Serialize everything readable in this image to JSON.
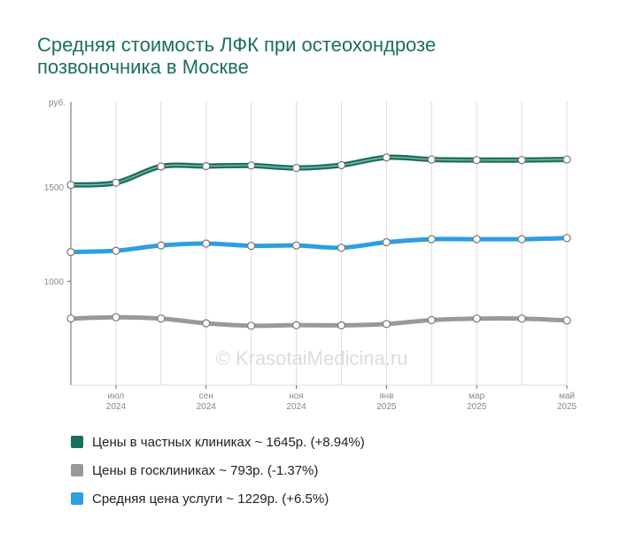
{
  "title_lines": [
    "Средняя стоимость ЛФК при остеохондрозе",
    "позвоночника в Москве"
  ],
  "chart_data": {
    "type": "line",
    "title": "Средняя стоимость ЛФК при остеохондрозе позвоночника в Москве",
    "ylabel": "руб.",
    "ylim": [
      450,
      1950
    ],
    "yticks": [
      {
        "value": 1500,
        "label": "1500"
      },
      {
        "value": 1000,
        "label": "1000"
      }
    ],
    "x": [
      "2024-06",
      "2024-07",
      "2024-08",
      "2024-09",
      "2024-10",
      "2024-11",
      "2024-12",
      "2025-01",
      "2025-02",
      "2025-03",
      "2025-04",
      "2025-05"
    ],
    "xticks": [
      {
        "index": 1,
        "month": "июл",
        "year": "2024"
      },
      {
        "index": 3,
        "month": "сен",
        "year": "2024"
      },
      {
        "index": 5,
        "month": "ноя",
        "year": "2024"
      },
      {
        "index": 7,
        "month": "янв",
        "year": "2025"
      },
      {
        "index": 9,
        "month": "мар",
        "year": "2025"
      },
      {
        "index": 11,
        "month": "май",
        "year": "2025"
      }
    ],
    "grid": true,
    "legend_position": "bottom",
    "watermark": "© KrasotaiMedicina.ru",
    "series": [
      {
        "name": "Цены в частных клиниках",
        "legend": "Цены в частных клиниках ~ 1645р. (+8.94%)",
        "color": "#1b6f5f",
        "style": "double",
        "values": [
          1510,
          1522,
          1608,
          1610,
          1613,
          1600,
          1615,
          1656,
          1645,
          1642,
          1642,
          1645
        ]
      },
      {
        "name": "Цены в госклиниках",
        "legend": "Цены в госклиниках ~ 793р. (-1.37%)",
        "color": "#999999",
        "style": "solid",
        "values": [
          803,
          810,
          803,
          778,
          765,
          768,
          767,
          774,
          795,
          803,
          803,
          793
        ]
      },
      {
        "name": "Средняя цена услуги",
        "legend": "Средняя цена услуги ~ 1229р. (+6.5%)",
        "color": "#2d9ee0",
        "style": "solid",
        "values": [
          1155,
          1162,
          1190,
          1200,
          1188,
          1190,
          1178,
          1207,
          1223,
          1223,
          1223,
          1229
        ]
      }
    ]
  }
}
